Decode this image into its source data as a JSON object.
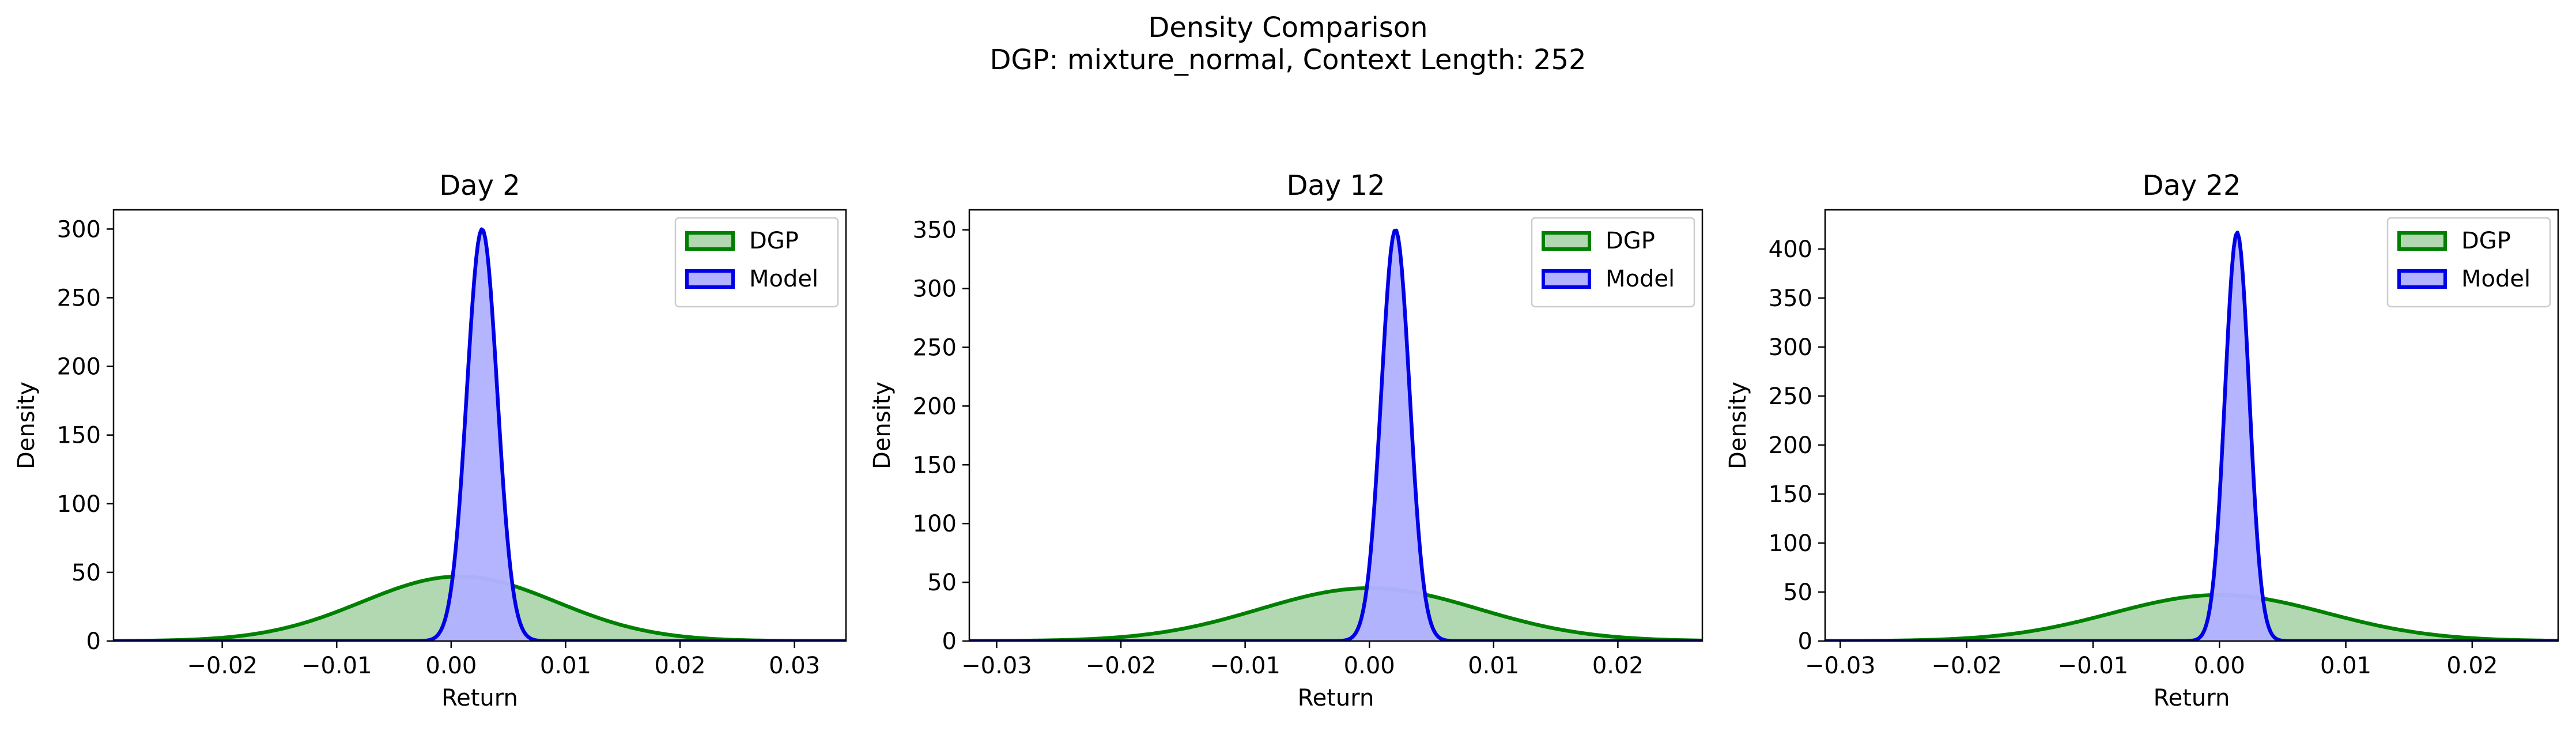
{
  "figure": {
    "title": "Density Comparison",
    "subtitle": "DGP: mixture_normal, Context Length: 252"
  },
  "colors": {
    "dgp_line": "#008000",
    "dgp_fill": "#b2d8b2",
    "model_line": "#0000e6",
    "model_fill": "#b2b2ff"
  },
  "chart_data": [
    {
      "type": "area",
      "title": "Day 2",
      "xlabel": "Return",
      "ylabel": "Density",
      "xlim": [
        -0.0295,
        0.0345
      ],
      "ylim": [
        0,
        314
      ],
      "xticks": [
        -0.02,
        -0.01,
        0.0,
        0.01,
        0.02,
        0.03
      ],
      "xtick_labels": [
        "−0.02",
        "−0.01",
        "0.00",
        "0.01",
        "0.02",
        "0.03"
      ],
      "yticks": [
        0,
        50,
        100,
        150,
        200,
        250,
        300
      ],
      "ytick_labels": [
        "0",
        "50",
        "100",
        "150",
        "200",
        "250",
        "300"
      ],
      "legend": {
        "position": "top-right",
        "entries": [
          "DGP",
          "Model"
        ]
      },
      "series": [
        {
          "name": "DGP",
          "distribution": "normal",
          "mean": 0.0007,
          "sd": 0.0085,
          "peak_density": 47
        },
        {
          "name": "Model",
          "distribution": "normal",
          "mean": 0.0027,
          "sd": 0.00133,
          "peak_density": 300
        }
      ]
    },
    {
      "type": "area",
      "title": "Day 12",
      "xlabel": "Return",
      "ylabel": "Density",
      "xlim": [
        -0.0322,
        0.0268
      ],
      "ylim": [
        0,
        367
      ],
      "xticks": [
        -0.03,
        -0.02,
        -0.01,
        0.0,
        0.01,
        0.02
      ],
      "xtick_labels": [
        "−0.03",
        "−0.02",
        "−0.01",
        "0.00",
        "0.01",
        "0.02"
      ],
      "yticks": [
        0,
        50,
        100,
        150,
        200,
        250,
        300,
        350
      ],
      "ytick_labels": [
        "0",
        "50",
        "100",
        "150",
        "200",
        "250",
        "300",
        "350"
      ],
      "legend": {
        "position": "top-right",
        "entries": [
          "DGP",
          "Model"
        ]
      },
      "series": [
        {
          "name": "DGP",
          "distribution": "normal",
          "mean": 0.0,
          "sd": 0.0088,
          "peak_density": 45
        },
        {
          "name": "Model",
          "distribution": "normal",
          "mean": 0.0021,
          "sd": 0.00114,
          "peak_density": 350
        }
      ]
    },
    {
      "type": "area",
      "title": "Day 22",
      "xlabel": "Return",
      "ylabel": "Density",
      "xlim": [
        -0.0312,
        0.0268
      ],
      "ylim": [
        0,
        440
      ],
      "xticks": [
        -0.03,
        -0.02,
        -0.01,
        0.0,
        0.01,
        0.02
      ],
      "xtick_labels": [
        "−0.03",
        "−0.02",
        "−0.01",
        "0.00",
        "0.01",
        "0.02"
      ],
      "yticks": [
        0,
        50,
        100,
        150,
        200,
        250,
        300,
        350,
        400
      ],
      "ytick_labels": [
        "0",
        "50",
        "100",
        "150",
        "200",
        "250",
        "300",
        "350",
        "400"
      ],
      "legend": {
        "position": "top-right",
        "entries": [
          "DGP",
          "Model"
        ]
      },
      "series": [
        {
          "name": "DGP",
          "distribution": "normal",
          "mean": 0.0,
          "sd": 0.0085,
          "peak_density": 47
        },
        {
          "name": "Model",
          "distribution": "normal",
          "mean": 0.0014,
          "sd": 0.00096,
          "peak_density": 417
        }
      ]
    }
  ]
}
